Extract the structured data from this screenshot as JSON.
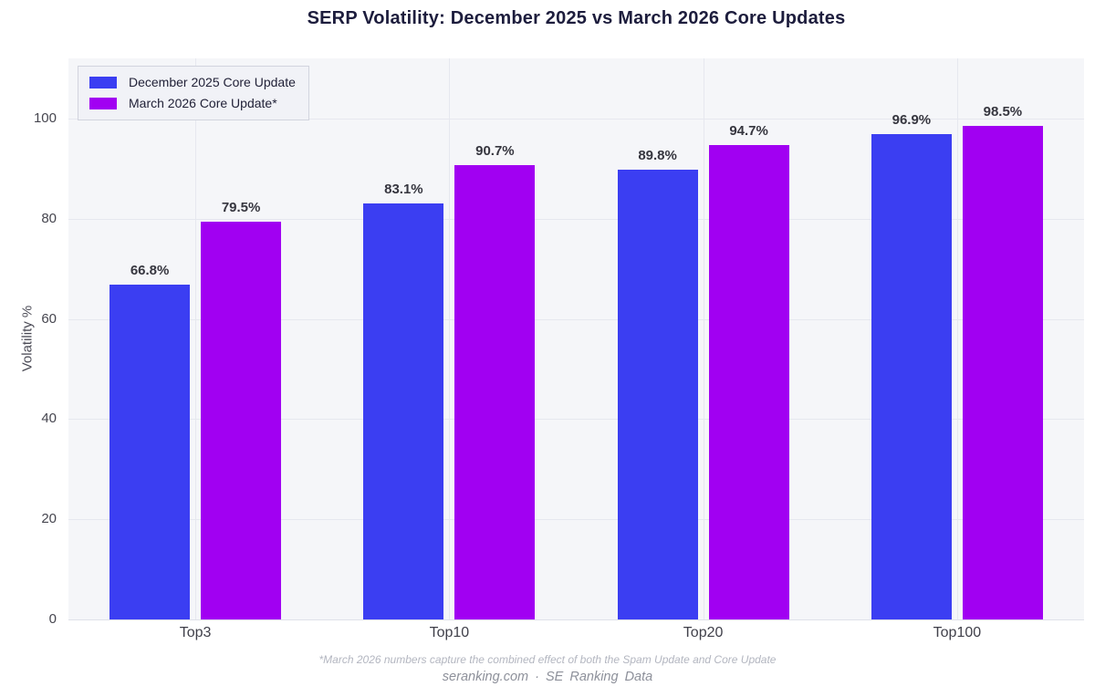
{
  "title": "SERP Volatility: December 2025 vs March 2026 Core Updates",
  "chart_data": {
    "type": "bar",
    "categories": [
      "Top3",
      "Top10",
      "Top20",
      "Top100"
    ],
    "series": [
      {
        "name": "December 2025 Core Update",
        "color": "#3B3EF2",
        "values": [
          66.8,
          83.1,
          89.8,
          96.9
        ]
      },
      {
        "name": "March 2026 Core Update*",
        "color": "#A100F2",
        "values": [
          79.5,
          90.7,
          94.7,
          98.5
        ]
      }
    ],
    "title": "SERP Volatility: December 2025 vs March 2026 Core Updates",
    "xlabel": "",
    "ylabel": "Volatility %",
    "yticks": [
      0,
      20,
      40,
      60,
      80,
      100
    ],
    "ylim": [
      0,
      112
    ],
    "grid": true,
    "legend_position": "top-left",
    "value_suffix": "%"
  },
  "colors": {
    "plot_background": "#f5f6f9",
    "gridline": "#e6e8ef",
    "title_text": "#1d1d3d",
    "series_blue": "#3B3EF2",
    "series_purple": "#A100F2"
  },
  "footer": {
    "note": "*March 2026 numbers capture the combined effect of both the Spam Update and Core Update",
    "source": "seranking.com · SE Ranking Data"
  }
}
